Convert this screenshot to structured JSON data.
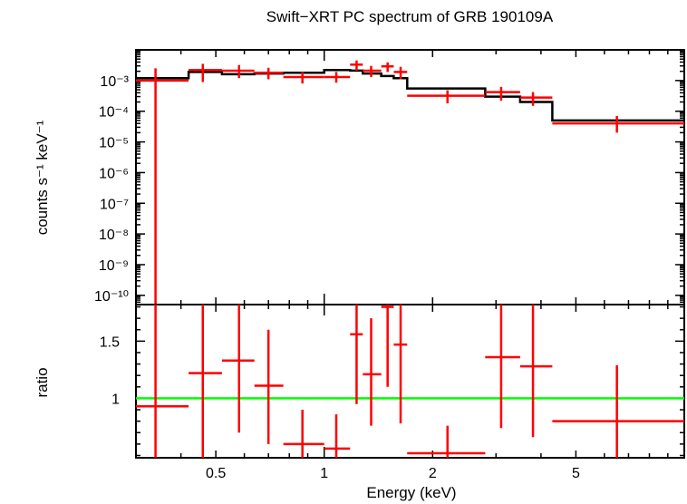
{
  "chart_data": [
    {
      "type": "scatter",
      "title": "Swift−XRT PC spectrum of GRB 190109A",
      "ylabel": "counts s⁻¹ keV⁻¹",
      "y_scale": "log",
      "x_scale": "log",
      "xlim": [
        0.3,
        10
      ],
      "ylim": [
        5e-11,
        0.01
      ],
      "y_ticks": [
        {
          "value": 0.001,
          "label": "10⁻³"
        },
        {
          "value": 0.0001,
          "label": "10⁻⁴"
        },
        {
          "value": 1e-05,
          "label": "10⁻⁵"
        },
        {
          "value": 1e-06,
          "label": "10⁻⁶"
        },
        {
          "value": 1e-07,
          "label": "10⁻⁷"
        },
        {
          "value": 1e-08,
          "label": "10⁻⁸"
        },
        {
          "value": 1e-09,
          "label": "10⁻⁹"
        },
        {
          "value": 1e-10,
          "label": "10⁻¹⁰"
        }
      ],
      "series": [
        {
          "color": "#ff0000",
          "style": "crosses",
          "points": [
            {
              "x": 0.34,
              "xlo": 0.3,
              "xhi": 0.42,
              "y": 0.001,
              "ylo": 1e-12,
              "yhi": 0.0025
            },
            {
              "x": 0.46,
              "xlo": 0.42,
              "xhi": 0.52,
              "y": 0.0022,
              "ylo": 0.0009,
              "yhi": 0.0035
            },
            {
              "x": 0.58,
              "xlo": 0.52,
              "xhi": 0.64,
              "y": 0.0021,
              "ylo": 0.0012,
              "yhi": 0.0032
            },
            {
              "x": 0.7,
              "xlo": 0.64,
              "xhi": 0.77,
              "y": 0.0018,
              "ylo": 0.0011,
              "yhi": 0.0026
            },
            {
              "x": 0.87,
              "xlo": 0.77,
              "xhi": 1.0,
              "y": 0.0013,
              "ylo": 0.0008,
              "yhi": 0.0019
            },
            {
              "x": 1.08,
              "xlo": 1.0,
              "xhi": 1.18,
              "y": 0.0013,
              "ylo": 0.00085,
              "yhi": 0.0019
            },
            {
              "x": 1.23,
              "xlo": 1.18,
              "xhi": 1.28,
              "y": 0.0033,
              "ylo": 0.0021,
              "yhi": 0.0045
            },
            {
              "x": 1.35,
              "xlo": 1.28,
              "xhi": 1.44,
              "y": 0.0021,
              "ylo": 0.0013,
              "yhi": 0.003
            },
            {
              "x": 1.5,
              "xlo": 1.44,
              "xhi": 1.56,
              "y": 0.0029,
              "ylo": 0.0019,
              "yhi": 0.0039
            },
            {
              "x": 1.63,
              "xlo": 1.56,
              "xhi": 1.7,
              "y": 0.0019,
              "ylo": 0.0011,
              "yhi": 0.0028
            },
            {
              "x": 2.2,
              "xlo": 1.7,
              "xhi": 2.8,
              "y": 0.00032,
              "ylo": 0.00018,
              "yhi": 0.00048
            },
            {
              "x": 3.1,
              "xlo": 2.8,
              "xhi": 3.5,
              "y": 0.00042,
              "ylo": 0.00022,
              "yhi": 0.00062
            },
            {
              "x": 3.8,
              "xlo": 3.5,
              "xhi": 4.3,
              "y": 0.00028,
              "ylo": 0.00015,
              "yhi": 0.00042
            },
            {
              "x": 6.5,
              "xlo": 4.3,
              "xhi": 10,
              "y": 4e-05,
              "ylo": 2e-05,
              "yhi": 7e-05
            }
          ]
        },
        {
          "color": "#000000",
          "style": "step",
          "bins": [
            {
              "xlo": 0.3,
              "xhi": 0.42,
              "y": 0.0012
            },
            {
              "xlo": 0.42,
              "xhi": 0.52,
              "y": 0.0019
            },
            {
              "xlo": 0.52,
              "xhi": 0.64,
              "y": 0.0016
            },
            {
              "xlo": 0.64,
              "xhi": 0.77,
              "y": 0.0017
            },
            {
              "xlo": 0.77,
              "xhi": 1.0,
              "y": 0.0018
            },
            {
              "xlo": 1.0,
              "xhi": 1.18,
              "y": 0.0022
            },
            {
              "xlo": 1.18,
              "xhi": 1.28,
              "y": 0.0021
            },
            {
              "xlo": 1.28,
              "xhi": 1.44,
              "y": 0.0017
            },
            {
              "xlo": 1.44,
              "xhi": 1.56,
              "y": 0.0014
            },
            {
              "xlo": 1.56,
              "xhi": 1.7,
              "y": 0.0012
            },
            {
              "xlo": 1.7,
              "xhi": 2.8,
              "y": 0.00055
            },
            {
              "xlo": 2.8,
              "xhi": 3.5,
              "y": 0.0003
            },
            {
              "xlo": 3.5,
              "xhi": 4.3,
              "y": 0.0002
            },
            {
              "xlo": 4.3,
              "xhi": 10,
              "y": 5e-05
            }
          ]
        }
      ]
    },
    {
      "type": "scatter",
      "xlabel": "Energy (keV)",
      "ylabel": "ratio",
      "x_scale": "log",
      "xlim": [
        0.3,
        10
      ],
      "ylim": [
        0.48,
        1.82
      ],
      "x_ticks": [
        {
          "value": 0.5,
          "label": "0.5"
        },
        {
          "value": 1,
          "label": "1"
        },
        {
          "value": 2,
          "label": "2"
        },
        {
          "value": 5,
          "label": "5"
        }
      ],
      "y_ticks": [
        {
          "value": 1,
          "label": "1"
        },
        {
          "value": 1.5,
          "label": "1.5"
        }
      ],
      "reference_line": {
        "y": 1,
        "color": "#00ff00"
      },
      "series": [
        {
          "color": "#ff0000",
          "style": "crosses",
          "points": [
            {
              "x": 0.34,
              "xlo": 0.3,
              "xhi": 0.42,
              "y": 0.93,
              "ylo": 0.48,
              "yhi": 1.82
            },
            {
              "x": 0.46,
              "xlo": 0.42,
              "xhi": 0.52,
              "y": 1.22,
              "ylo": 0.48,
              "yhi": 1.82
            },
            {
              "x": 0.58,
              "xlo": 0.52,
              "xhi": 0.64,
              "y": 1.33,
              "ylo": 0.7,
              "yhi": 1.82
            },
            {
              "x": 0.7,
              "xlo": 0.64,
              "xhi": 0.77,
              "y": 1.11,
              "ylo": 0.6,
              "yhi": 1.6
            },
            {
              "x": 0.87,
              "xlo": 0.77,
              "xhi": 1.0,
              "y": 0.6,
              "ylo": 0.48,
              "yhi": 0.9
            },
            {
              "x": 1.08,
              "xlo": 1.0,
              "xhi": 1.18,
              "y": 0.56,
              "ylo": 0.48,
              "yhi": 0.86
            },
            {
              "x": 1.23,
              "xlo": 1.18,
              "xhi": 1.28,
              "y": 1.56,
              "ylo": 0.95,
              "yhi": 1.82
            },
            {
              "x": 1.35,
              "xlo": 1.28,
              "xhi": 1.44,
              "y": 1.21,
              "ylo": 0.76,
              "yhi": 1.7
            },
            {
              "x": 1.5,
              "xlo": 1.44,
              "xhi": 1.56,
              "y": 1.8,
              "ylo": 1.1,
              "yhi": 1.82
            },
            {
              "x": 1.63,
              "xlo": 1.56,
              "xhi": 1.7,
              "y": 1.47,
              "ylo": 0.78,
              "yhi": 1.82
            },
            {
              "x": 2.2,
              "xlo": 1.7,
              "xhi": 2.8,
              "y": 0.52,
              "ylo": 0.48,
              "yhi": 0.76
            },
            {
              "x": 3.1,
              "xlo": 2.8,
              "xhi": 3.5,
              "y": 1.36,
              "ylo": 0.74,
              "yhi": 1.82
            },
            {
              "x": 3.8,
              "xlo": 3.5,
              "xhi": 4.3,
              "y": 1.28,
              "ylo": 0.66,
              "yhi": 1.82
            },
            {
              "x": 6.5,
              "xlo": 4.3,
              "xhi": 10,
              "y": 0.8,
              "ylo": 0.48,
              "yhi": 1.29
            }
          ]
        }
      ]
    }
  ]
}
